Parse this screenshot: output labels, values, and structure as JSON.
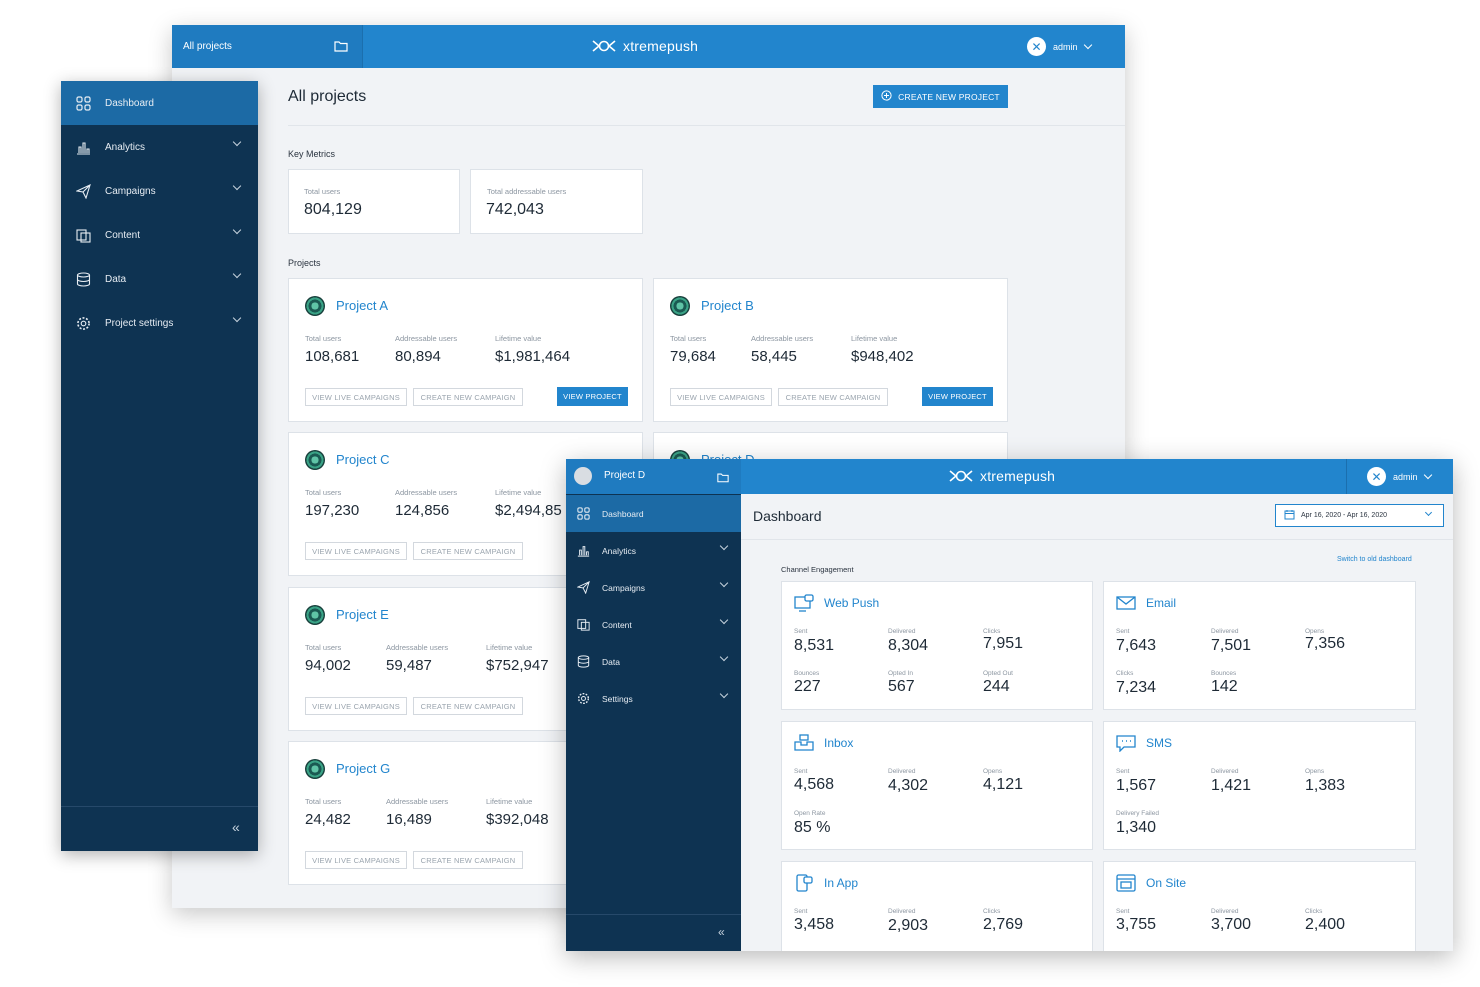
{
  "brand": {
    "logo_text": "xtremepush",
    "accent": "#2285cd",
    "sidebar_bg": "#0e3352"
  },
  "back_window": {
    "topbar_left": "All projects",
    "user": "admin",
    "page_title": "All projects",
    "create_project_label": "CREATE NEW PROJECT",
    "key_metrics_label": "Key Metrics",
    "key_metrics": [
      {
        "label": "Total users",
        "value": "804,129"
      },
      {
        "label": "Total addressable users",
        "value": "742,043"
      }
    ],
    "projects_label": "Projects",
    "col_labels": {
      "total": "Total users",
      "addressable": "Addressable users",
      "lifetime": "Lifetime value"
    },
    "btn_labels": {
      "live": "VIEW LIVE CAMPAIGNS",
      "create": "CREATE NEW CAMPAIGN",
      "view": "VIEW PROJECT"
    },
    "projects": [
      {
        "name": "Project A",
        "total": "108,681",
        "addressable": "80,894",
        "lifetime": "$1,981,464"
      },
      {
        "name": "Project B",
        "total": "79,684",
        "addressable": "58,445",
        "lifetime": "$948,402"
      },
      {
        "name": "Project C",
        "total": "197,230",
        "addressable": "124,856",
        "lifetime": "$2,494,85"
      },
      {
        "name": "Project D",
        "total": "",
        "addressable": "",
        "lifetime": ""
      },
      {
        "name": "Project E",
        "total": "94,002",
        "addressable": "59,487",
        "lifetime": "$752,947"
      },
      {
        "name": "Project G",
        "total": "24,482",
        "addressable": "16,489",
        "lifetime": "$392,048"
      }
    ]
  },
  "sidebar": {
    "items": [
      {
        "label": "Dashboard",
        "icon": "dashboard-icon"
      },
      {
        "label": "Analytics",
        "icon": "analytics-icon"
      },
      {
        "label": "Campaigns",
        "icon": "campaigns-icon"
      },
      {
        "label": "Content",
        "icon": "content-icon"
      },
      {
        "label": "Data",
        "icon": "data-icon"
      },
      {
        "label": "Project settings",
        "icon": "gear-icon"
      }
    ],
    "collapse_glyph": "«"
  },
  "front_window": {
    "project_name": "Project D",
    "user": "admin",
    "page_title": "Dashboard",
    "date_range": "Apr 16, 2020 - Apr 16, 2020",
    "switch_link": "Switch to old dashboard",
    "channel_label": "Channel Engagement",
    "nav": [
      "Dashboard",
      "Analytics",
      "Campaigns",
      "Content",
      "Data",
      "Settings"
    ],
    "collapse_glyph": "«",
    "channels": {
      "webpush": {
        "title": "Web Push",
        "labels": [
          "Sent",
          "Delivered",
          "Clicks",
          "Bounces",
          "Opted In",
          "Opted Out"
        ],
        "values": [
          "8,531",
          "8,304",
          "7,951",
          "227",
          "567",
          "244"
        ]
      },
      "email": {
        "title": "Email",
        "labels": [
          "Sent",
          "Delivered",
          "Opens",
          "Clicks",
          "Bounces"
        ],
        "values": [
          "7,643",
          "7,501",
          "7,356",
          "7,234",
          "142"
        ]
      },
      "inbox": {
        "title": "Inbox",
        "labels": [
          "Sent",
          "Delivered",
          "Opens",
          "Open Rate"
        ],
        "values": [
          "4,568",
          "4,302",
          "4,121",
          "85 %"
        ]
      },
      "sms": {
        "title": "SMS",
        "labels": [
          "Sent",
          "Delivered",
          "Opens",
          "Delivery Failed"
        ],
        "values": [
          "1,567",
          "1,421",
          "1,383",
          "1,340"
        ]
      },
      "inapp": {
        "title": "In App",
        "labels": [
          "Sent",
          "Delivered",
          "Clicks"
        ],
        "values": [
          "3,458",
          "2,903",
          "2,769"
        ]
      },
      "onsite": {
        "title": "On Site",
        "labels": [
          "Sent",
          "Delivered",
          "Clicks"
        ],
        "values": [
          "3,755",
          "3,700",
          "2,400"
        ]
      }
    }
  }
}
